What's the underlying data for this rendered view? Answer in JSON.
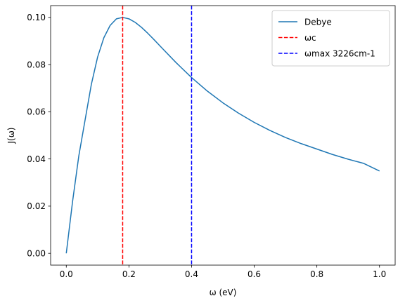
{
  "chart_data": {
    "type": "line",
    "title": "",
    "xlabel": "ω (eV)",
    "ylabel": "J(ω)",
    "xlim": [
      -0.05,
      1.05
    ],
    "ylim": [
      -0.005,
      0.105
    ],
    "xticks": [
      0.0,
      0.2,
      0.4,
      0.6,
      0.8,
      1.0
    ],
    "xtick_labels": [
      "0.0",
      "0.2",
      "0.4",
      "0.6",
      "0.8",
      "1.0"
    ],
    "yticks": [
      0.0,
      0.02,
      0.04,
      0.06,
      0.08,
      0.1
    ],
    "ytick_labels": [
      "0.00",
      "0.02",
      "0.04",
      "0.06",
      "0.08",
      "0.10"
    ],
    "grid": false,
    "legend_position": "top-right",
    "series": [
      {
        "name": "Debye",
        "color": "#1f77b4",
        "style": "solid",
        "x": [
          0.0,
          0.02,
          0.04,
          0.06,
          0.08,
          0.1,
          0.12,
          0.14,
          0.16,
          0.18,
          0.2,
          0.22,
          0.24,
          0.26,
          0.28,
          0.3,
          0.35,
          0.4,
          0.45,
          0.5,
          0.55,
          0.6,
          0.65,
          0.7,
          0.75,
          0.8,
          0.85,
          0.9,
          0.95,
          1.0
        ],
        "values": [
          0.0,
          0.0219,
          0.0413,
          0.0565,
          0.0716,
          0.0832,
          0.0914,
          0.0966,
          0.0994,
          0.1,
          0.0994,
          0.0979,
          0.0958,
          0.0933,
          0.0906,
          0.0878,
          0.0809,
          0.0745,
          0.0688,
          0.0638,
          0.0594,
          0.0555,
          0.0521,
          0.0491,
          0.0465,
          0.0442,
          0.0419,
          0.0399,
          0.0381,
          0.0349
        ]
      }
    ],
    "vlines": [
      {
        "name": "ωc",
        "x": 0.18,
        "color": "#ff0000",
        "style": "dashed"
      },
      {
        "name": "ωmax 3226cm-1",
        "x": 0.4,
        "color": "#0000ff",
        "style": "dashed"
      }
    ]
  }
}
